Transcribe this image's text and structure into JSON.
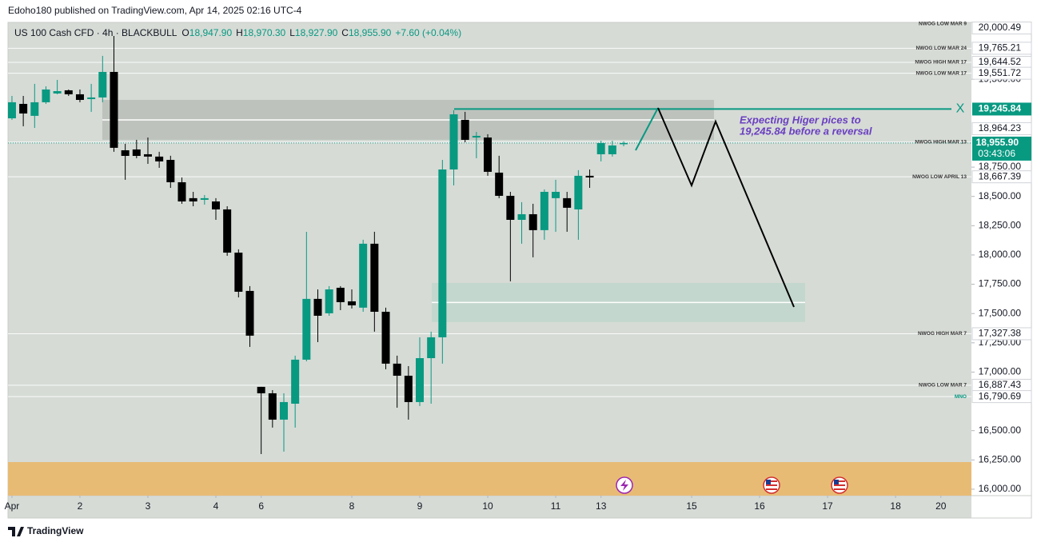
{
  "header": {
    "byline": "Edoho180 published on TradingView.com, Apr 14, 2025 02:16 UTC-4",
    "brand": "TradingView"
  },
  "chart_data": {
    "type": "candlestick",
    "symbol": "US 100 Cash CFD · 4h · BLACKBULL",
    "ohlc_legend": {
      "o_label": "O",
      "o": "18,947.90",
      "h_label": "H",
      "h": "18,970.30",
      "l_label": "L",
      "l": "18,927.90",
      "c_label": "C",
      "c": "18,955.90",
      "change": "+7.60 (+0.04%)"
    },
    "up_color": "#089981",
    "down_color": "#000000",
    "open": [
      19167,
      19290,
      19188,
      19304,
      19379,
      19406,
      19372,
      19331,
      19345,
      19563,
      18894,
      18901,
      18860,
      18840,
      18812,
      18621,
      18485,
      18471,
      18457,
      18389,
      18020,
      17693,
      16874,
      16819,
      16594,
      16730,
      17106,
      17625,
      17502,
      17720,
      17604,
      17550,
      18096,
      17515,
      17072,
      16969,
      16744,
      17119,
      17297,
      18730,
      19154,
      19003,
      19003,
      18703,
      18505,
      18300,
      18348,
      18212,
      18485,
      18485,
      18389,
      18676,
      18860,
      18860,
      18947.9
    ],
    "high": [
      19358,
      19358,
      19461,
      19440,
      19495,
      19413,
      19413,
      19461,
      19700,
      19870,
      18949,
      18983,
      19003,
      18881,
      18847,
      18662,
      18539,
      18512,
      18485,
      18416,
      18048,
      17734,
      16874,
      16846,
      16819,
      17140,
      18198,
      17706,
      17734,
      17734,
      17706,
      18130,
      18198,
      17550,
      17140,
      17051,
      17297,
      17345,
      18812,
      19236,
      19222,
      19051,
      19031,
      18847,
      18539,
      18451,
      18437,
      18560,
      18642,
      18539,
      18724,
      18730,
      18976,
      18976,
      18970.3
    ],
    "low": [
      19154,
      19099,
      19085,
      19290,
      19372,
      19358,
      19304,
      19222,
      19304,
      18881,
      18642,
      18826,
      18778,
      18744,
      18573,
      18437,
      18416,
      18430,
      18300,
      17993,
      17638,
      17215,
      16300,
      16526,
      16321,
      16526,
      17092,
      17256,
      17481,
      17529,
      17543,
      17515,
      17345,
      17024,
      16696,
      16594,
      16710,
      16730,
      17072,
      18594,
      18962,
      18826,
      18676,
      18485,
      17775,
      18096,
      17980,
      18130,
      18198,
      18198,
      18130,
      18573,
      18799,
      18840,
      18927.9
    ],
    "close": [
      19304,
      19208,
      19304,
      19413,
      19399,
      19372,
      19324,
      19345,
      19563,
      18915,
      18846,
      18846,
      18840,
      18799,
      18621,
      18457,
      18457,
      18485,
      18389,
      18020,
      17686,
      17311,
      16819,
      16594,
      16744,
      17106,
      17625,
      17481,
      17706,
      17597,
      17570,
      18096,
      17515,
      17072,
      16969,
      16744,
      17119,
      17297,
      18730,
      19201,
      18983,
      19017,
      18710,
      18505,
      18300,
      18348,
      18212,
      18539,
      18539,
      18403,
      18676,
      18662,
      18956,
      18935,
      18955.9
    ],
    "xlim": [
      -0.35,
      84.7
    ],
    "xticks": [
      {
        "value": 0,
        "label": "Apr"
      },
      {
        "value": 6,
        "label": "2"
      },
      {
        "value": 12,
        "label": "3"
      },
      {
        "value": 18,
        "label": "4"
      },
      {
        "value": 22,
        "label": "6"
      },
      {
        "value": 30,
        "label": "8"
      },
      {
        "value": 36,
        "label": "9"
      },
      {
        "value": 42,
        "label": "10"
      },
      {
        "value": 48,
        "label": "11"
      },
      {
        "value": 52,
        "label": "13"
      },
      {
        "value": 60,
        "label": "15"
      },
      {
        "value": 66,
        "label": "16"
      },
      {
        "value": 72,
        "label": "17"
      },
      {
        "value": 78,
        "label": "18"
      },
      {
        "value": 82,
        "label": "20"
      }
    ],
    "ylim": [
      15945,
      19986
    ],
    "yticks": [
      {
        "value": 16000,
        "label": "16,000.00"
      },
      {
        "value": 16250,
        "label": "16,250.00"
      },
      {
        "value": 16500,
        "label": "16,500.00"
      },
      {
        "value": 17000,
        "label": "17,000.00"
      },
      {
        "value": 17250,
        "label": "17,250.00"
      },
      {
        "value": 17500,
        "label": "17,500.00"
      },
      {
        "value": 17750,
        "label": "17,750.00"
      },
      {
        "value": 18000,
        "label": "18,000.00"
      },
      {
        "value": 18250,
        "label": "18,250.00"
      },
      {
        "value": 18500,
        "label": "18,500.00"
      },
      {
        "value": 18750,
        "label": "18,750.00"
      },
      {
        "value": 19500,
        "label": "19,500.00"
      }
    ],
    "grid": false,
    "levels": [
      {
        "name": "NWOG LOW MAR 9",
        "value": 20000.49,
        "value_label": "20,000.49",
        "color": "#333333"
      },
      {
        "name": "NWOG LOW MAR 24",
        "value": 19765.21,
        "value_label": "19,765.21",
        "color": "#333333"
      },
      {
        "name": "NWOG HIGH MAR 17",
        "value": 19644.52,
        "value_label": "19,644.52",
        "color": "#333333"
      },
      {
        "name": "NWOG LOW MAR 17",
        "value": 19551.72,
        "value_label": "19,551.72",
        "color": "#333333"
      },
      {
        "name": "NWOG HIGH MAR 13",
        "value": 18964.23,
        "value_label": "18,964.23",
        "color": "#333333"
      },
      {
        "name": "NWOG LOW APRIL 13",
        "value": 18667.39,
        "value_label": "18,667.39",
        "color": "#333333"
      },
      {
        "name": "NWOG HIGH MAR 7",
        "value": 17327.38,
        "value_label": "17,327.38",
        "color": "#333333"
      },
      {
        "name": "NWOG LOW MAR 7",
        "value": 16887.43,
        "value_label": "16,887.43",
        "color": "#333333"
      },
      {
        "name": "MNO",
        "value": 16790.69,
        "value_label": "16,790.69",
        "color": "#089981"
      }
    ],
    "target": {
      "name": "X",
      "value": 19245.84,
      "value_label": "19,245.84",
      "color": "#089981"
    },
    "annotation": [
      "Expecting Higer pices to",
      "19,245.84 before a reversal"
    ],
    "current_price": {
      "value": 18955.9,
      "value_label": "18,955.90",
      "countdown": "03:43:06",
      "color": "#089981"
    },
    "zones": [
      {
        "top": 19324,
        "bottom": 18983,
        "color": "#b9bdb9"
      },
      {
        "top": 17761,
        "bottom": 17427,
        "color": "#bfd6cc"
      }
    ]
  }
}
